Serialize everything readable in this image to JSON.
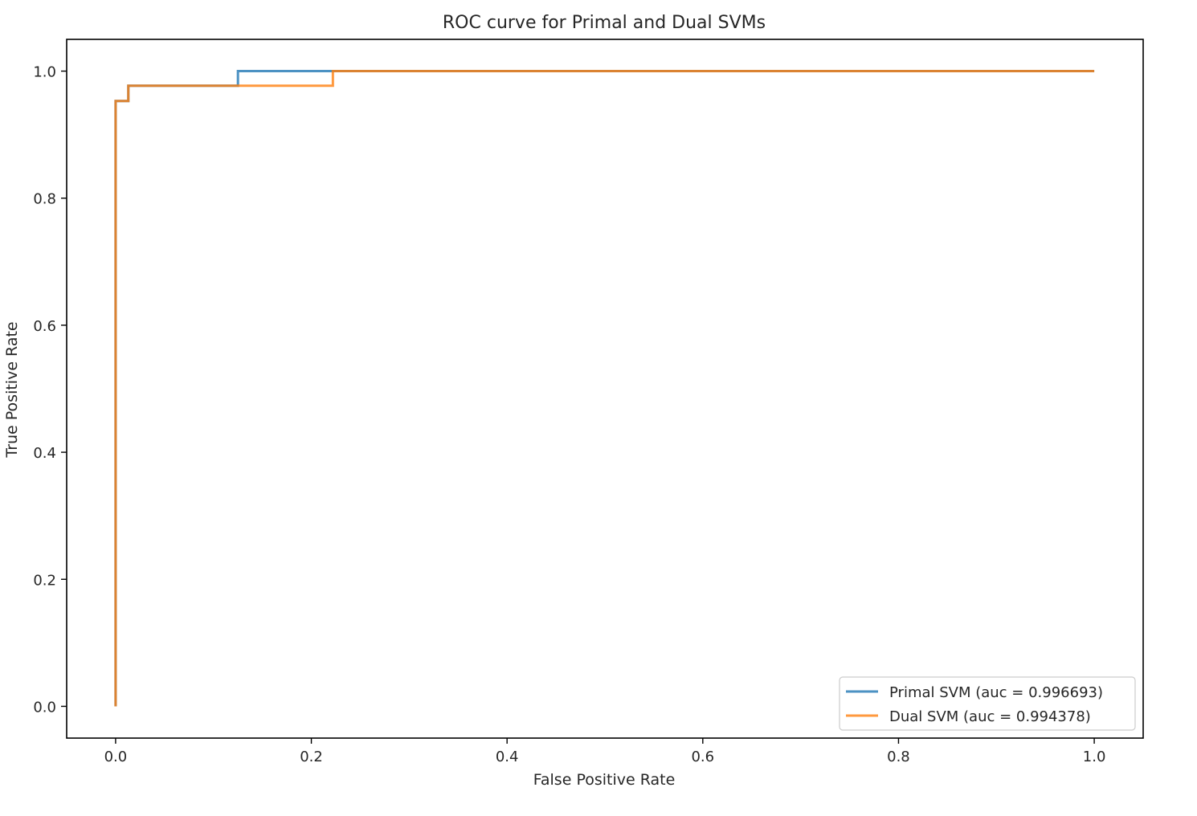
{
  "chart_data": {
    "type": "line",
    "title": "ROC curve for Primal and Dual SVMs",
    "xlabel": "False Positive Rate",
    "ylabel": "True Positive Rate",
    "xlim": [
      -0.05,
      1.05
    ],
    "ylim": [
      -0.05,
      1.05
    ],
    "xticks": [
      0.0,
      0.2,
      0.4,
      0.6,
      0.8,
      1.0
    ],
    "xtick_labels": [
      "0.0",
      "0.2",
      "0.4",
      "0.6",
      "0.8",
      "1.0"
    ],
    "yticks": [
      0.0,
      0.2,
      0.4,
      0.6,
      0.8,
      1.0
    ],
    "ytick_labels": [
      "0.0",
      "0.2",
      "0.4",
      "0.6",
      "0.8",
      "1.0"
    ],
    "grid": false,
    "legend_position": "lower right",
    "series": [
      {
        "name": "Primal SVM (auc = 0.996693)",
        "color": "#1f77b4",
        "x": [
          0.0,
          0.0,
          0.013,
          0.013,
          0.125,
          0.125,
          1.0
        ],
        "y": [
          0.0,
          0.953,
          0.953,
          0.977,
          0.977,
          1.0,
          1.0
        ]
      },
      {
        "name": "Dual SVM (auc = 0.994378)",
        "color": "#ff7f0e",
        "x": [
          0.0,
          0.0,
          0.013,
          0.013,
          0.222,
          0.222,
          1.0
        ],
        "y": [
          0.0,
          0.953,
          0.953,
          0.977,
          0.977,
          1.0,
          1.0
        ]
      }
    ]
  }
}
